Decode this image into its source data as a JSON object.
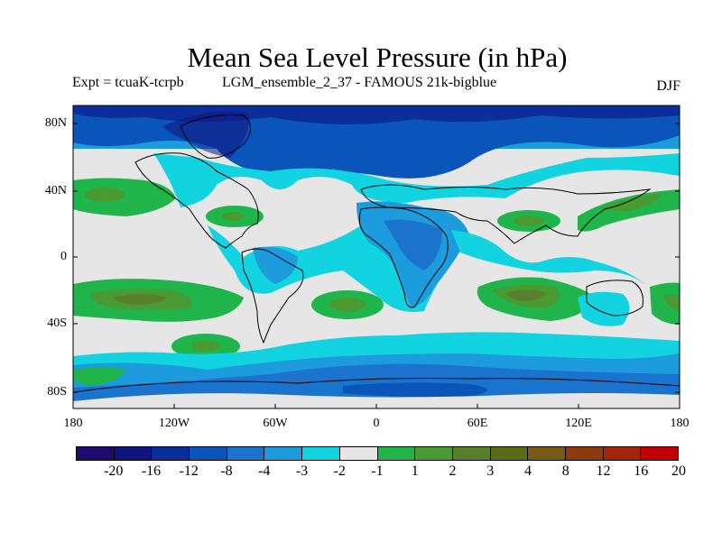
{
  "title": "Mean Sea Level Pressure (in hPa)",
  "experiment": "Expt = tcuaK-tcrpb",
  "run_name": "LGM_ensemble_2_37 - FAMOUS 21k-bigblue",
  "season": "DJF",
  "map": {
    "projection": "cylindrical equidistant",
    "lon_range": [
      -180,
      180
    ],
    "lat_range": [
      -90,
      90
    ],
    "lat_tick_labels": [
      "80N",
      "40N",
      "0",
      "40S",
      "80S"
    ],
    "lon_tick_labels": [
      "180",
      "120W",
      "60W",
      "0",
      "60E",
      "120E",
      "180"
    ],
    "field": "mean sea level pressure anomaly (hPa)",
    "features": [
      {
        "region": "Arctic / Greenland",
        "level": "-8 to -4",
        "color": "#0a55b9"
      },
      {
        "region": "Central Africa / Sahara",
        "level": "-4 to -3",
        "color": "#1a73cc"
      },
      {
        "region": "Southern Ocean ring",
        "level": "-3 to -2",
        "color": "#1c9bdd"
      },
      {
        "region": "North Pacific subtropics",
        "level": "2 to 3",
        "color": "#4a9a32"
      },
      {
        "region": "South Pacific subtropics",
        "level": "3 to 4",
        "color": "#58802a"
      },
      {
        "region": "South Indian Ocean",
        "level": "3 to 4",
        "color": "#58802a"
      }
    ]
  },
  "colorbar": {
    "colors": [
      "#1f0a6e",
      "#10147f",
      "#0a2f9b",
      "#0a55b9",
      "#1a73cc",
      "#1c9bdd",
      "#12d3e0",
      "#e6e6e6",
      "#1fb54a",
      "#4a9a32",
      "#58802a",
      "#5b6a15",
      "#7a5a12",
      "#8c3a0e",
      "#a2250b",
      "#c00000"
    ],
    "labels": [
      "-20",
      "-16",
      "-12",
      "-8",
      "-4",
      "-3",
      "-2",
      "-1",
      "1",
      "2",
      "3",
      "4",
      "8",
      "12",
      "16",
      "20"
    ]
  }
}
